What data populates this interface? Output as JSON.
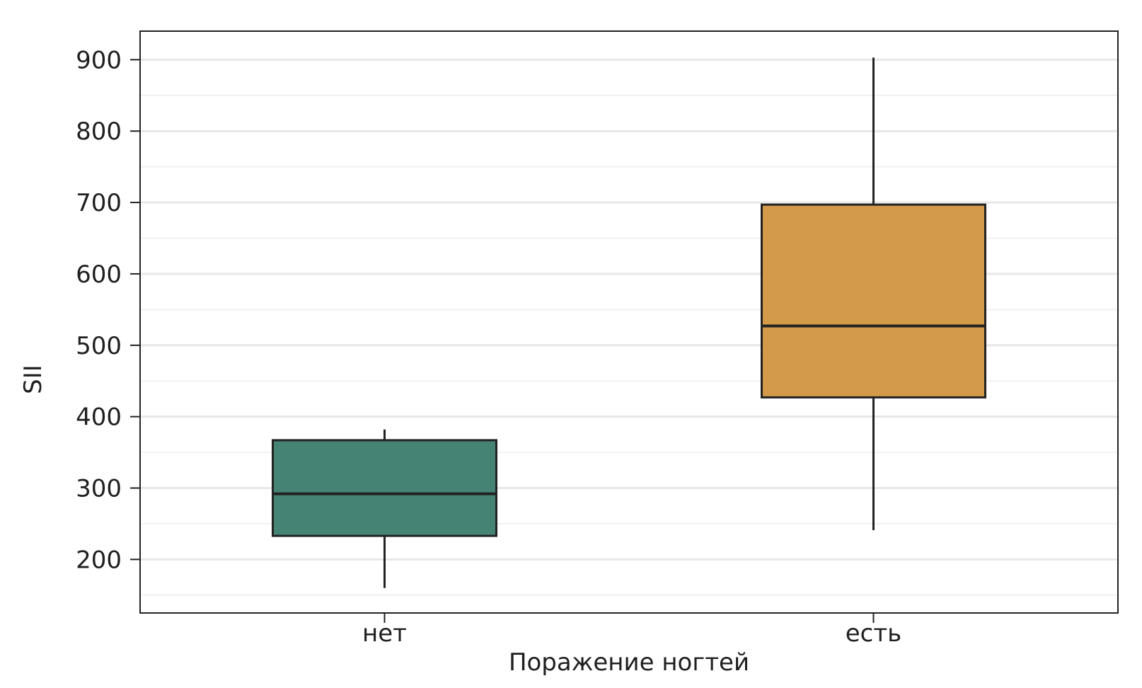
{
  "chart_data": {
    "type": "boxplot",
    "title": "",
    "xlabel": "Поражение ногтей",
    "ylabel": "SII",
    "ylim": [
      125,
      940
    ],
    "yticks": [
      200,
      300,
      400,
      500,
      600,
      700,
      800,
      900
    ],
    "grid": true,
    "categories": [
      "нет",
      "есть"
    ],
    "boxes": [
      {
        "category": "нет",
        "whisker_low": 160,
        "q1": 233,
        "median": 292,
        "q3": 367,
        "whisker_high": 382,
        "color": "#458475"
      },
      {
        "category": "есть",
        "whisker_low": 241,
        "q1": 427,
        "median": 527,
        "q3": 697,
        "whisker_high": 903,
        "color": "#D39A4A"
      }
    ]
  }
}
